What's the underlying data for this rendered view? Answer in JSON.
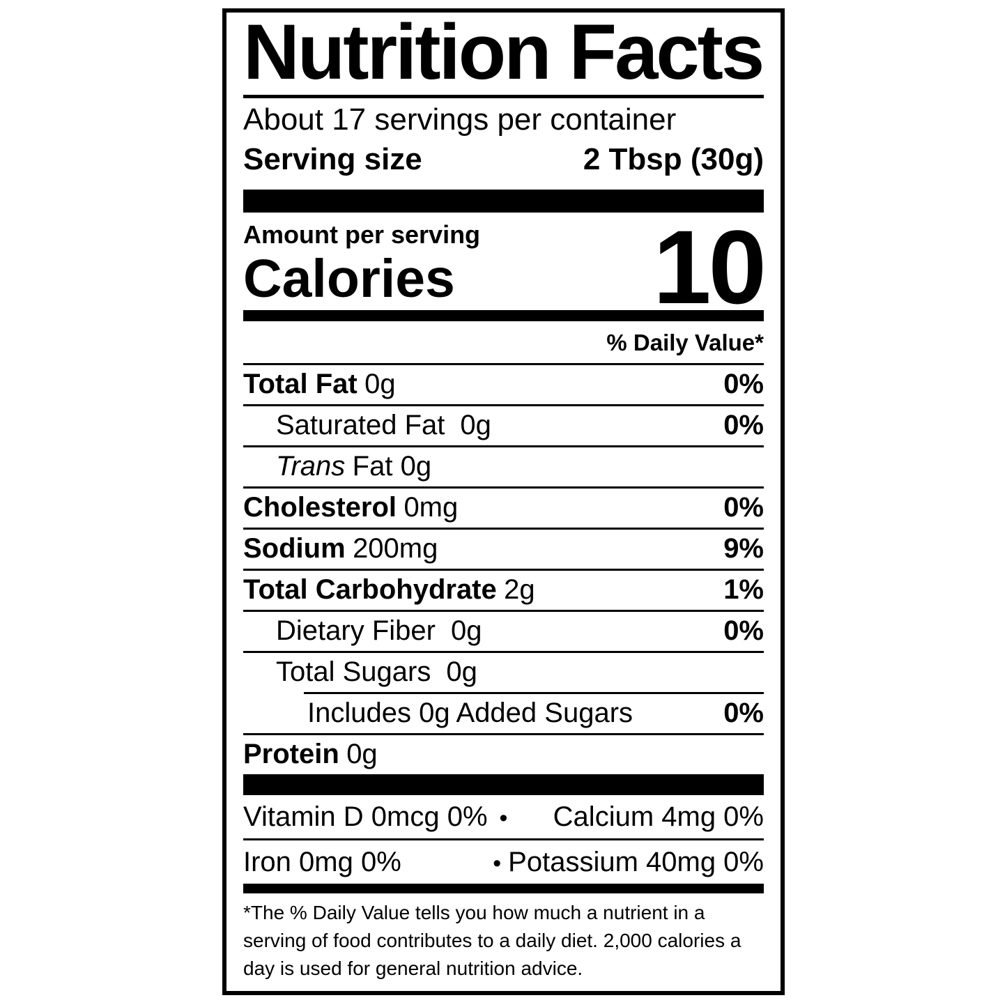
{
  "label": {
    "title": "Nutrition Facts",
    "servings_per_container": "About 17 servings per container",
    "serving_size_label": "Serving size",
    "serving_size_value": "2 Tbsp (30g)",
    "amount_per_serving": "Amount per serving",
    "calories_label": "Calories",
    "calories_value": "10",
    "daily_value_header": "% Daily Value*"
  },
  "nutrients": [
    {
      "name": "Total Fat",
      "amount": "0g",
      "dv": "0%"
    },
    {
      "name": "Saturated Fat",
      "amount": "0g",
      "dv": "0%"
    },
    {
      "name": "Trans",
      "amount": "Fat 0g",
      "dv": ""
    },
    {
      "name": "Cholesterol",
      "amount": "0mg",
      "dv": "0%"
    },
    {
      "name": "Sodium",
      "amount": "200mg",
      "dv": "9%"
    },
    {
      "name": "Total Carbohydrate",
      "amount": "2g",
      "dv": "1%"
    },
    {
      "name": "Dietary Fiber",
      "amount": "0g",
      "dv": "0%"
    },
    {
      "name": "Total Sugars",
      "amount": "0g",
      "dv": ""
    },
    {
      "name": "Includes 0g Added Sugars",
      "amount": "",
      "dv": "0%"
    },
    {
      "name": "Protein",
      "amount": "0g",
      "dv": ""
    }
  ],
  "micronutrients": [
    {
      "left": "Vitamin D 0mcg 0%",
      "separator": "•",
      "right": "Calcium 4mg 0%"
    },
    {
      "left": "Iron 0mg 0%",
      "separator": "•",
      "right": "Potassium 40mg 0%"
    }
  ],
  "footnote": "*The % Daily Value tells you how much a nutrient in a serving of food contributes to a daily diet. 2,000 calories a day is used for general nutrition advice.",
  "colors": {
    "ink": "#000000",
    "paper": "#ffffff"
  }
}
